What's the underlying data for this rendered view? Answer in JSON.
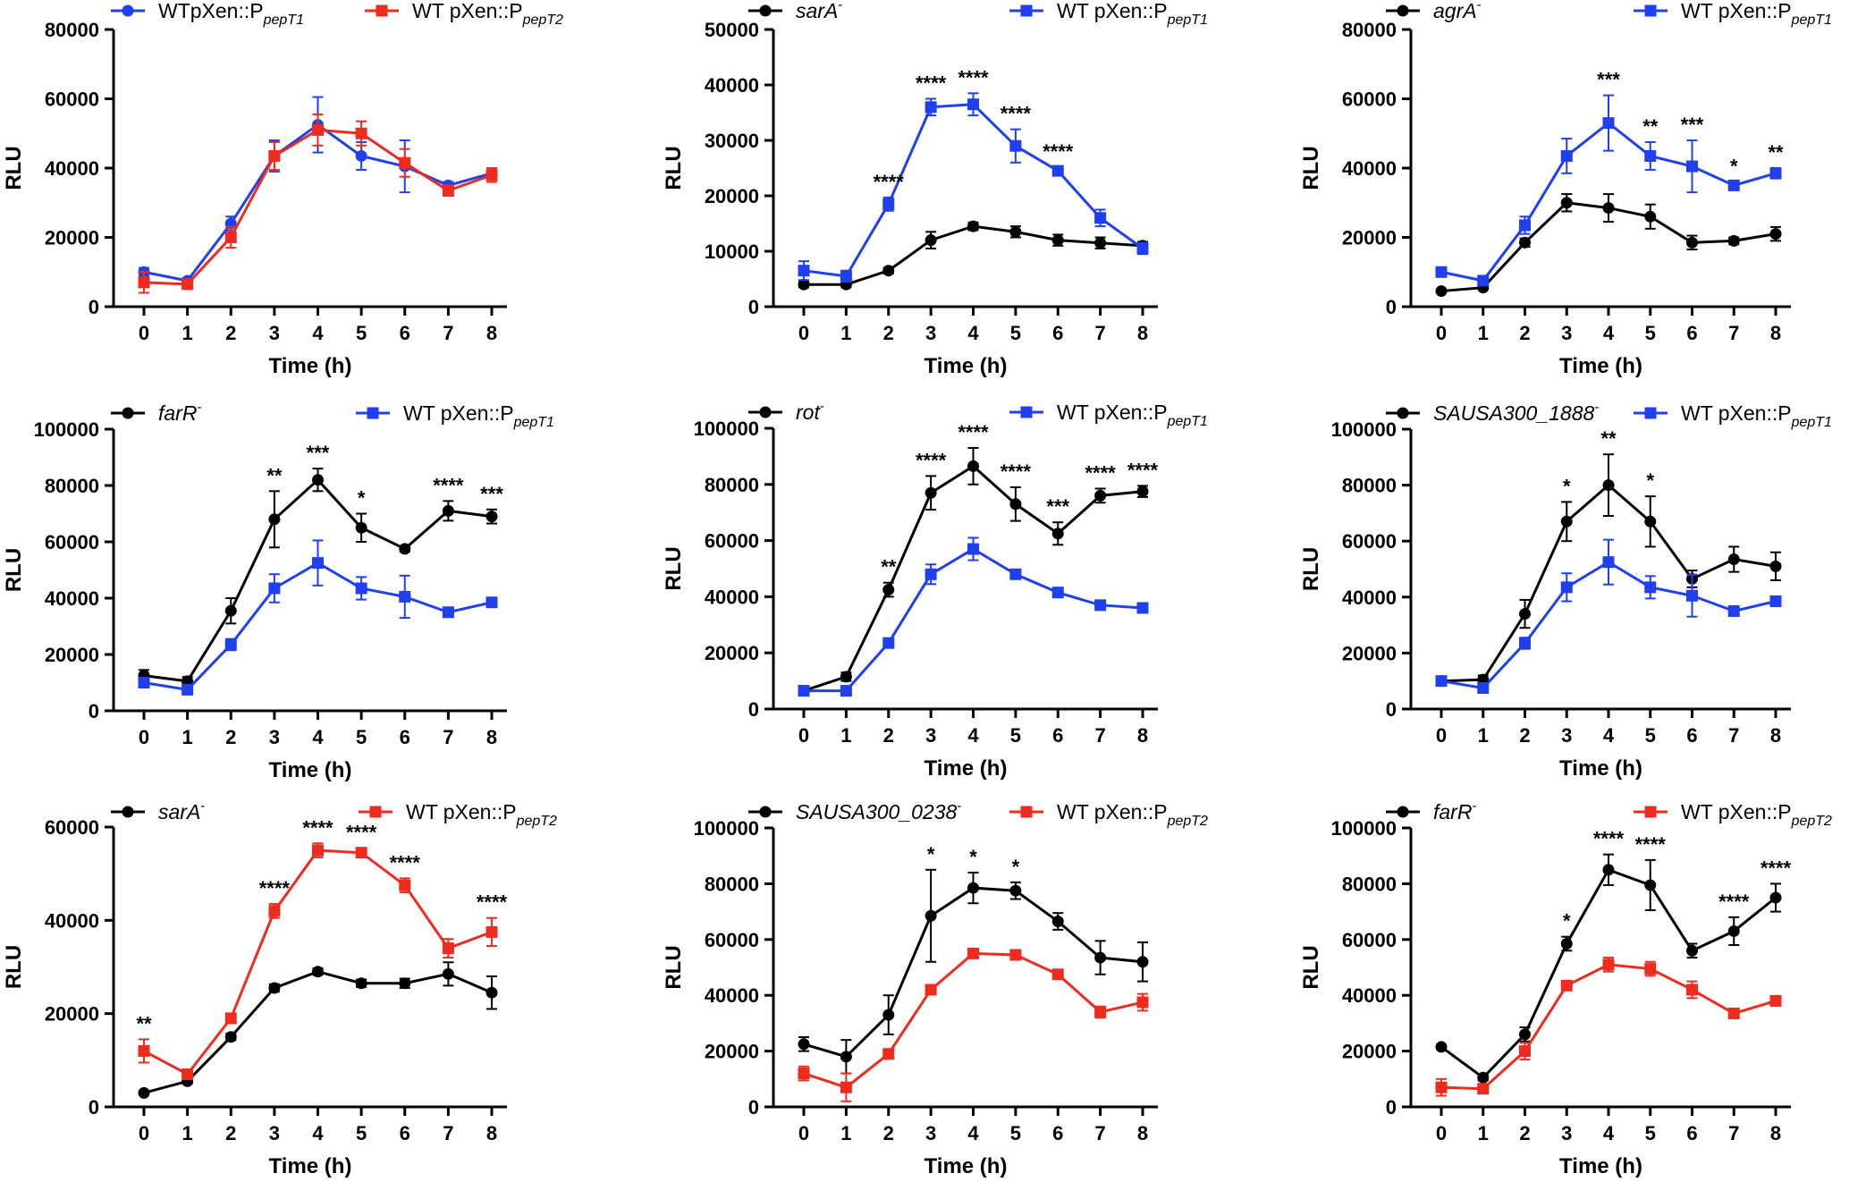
{
  "colors": {
    "black": "#000000",
    "blue": "#1f3ff0",
    "red": "#ee2b1e"
  },
  "chart_data": [
    {
      "type": "line",
      "title": "",
      "xlabel": "Time (h)",
      "ylabel": "RLU",
      "categories": [
        "0",
        "1",
        "2",
        "3",
        "4",
        "5",
        "6",
        "7",
        "8"
      ],
      "ylim": [
        0,
        80000
      ],
      "yticks": [
        "0",
        "20000",
        "40000",
        "60000",
        "80000"
      ],
      "series": [
        {
          "name": "WTpXen::P",
          "name_sub": "pepT1",
          "name_italic": false,
          "name_sup": "",
          "color": "#1f3ff0",
          "marker": "circle",
          "values": [
            10000,
            7500,
            24000,
            43500,
            52500,
            43500,
            40500,
            35000,
            38500
          ],
          "errors": [
            1200,
            800,
            2000,
            4500,
            8000,
            4000,
            7500,
            1000,
            1500
          ]
        },
        {
          "name": "WT pXen::P",
          "name_sub": "pepT2",
          "name_italic": false,
          "name_sup": "",
          "color": "#ee2b1e",
          "marker": "square",
          "values": [
            7000,
            6500,
            20000,
            43500,
            51000,
            50000,
            41500,
            33500,
            38000
          ],
          "errors": [
            3000,
            1000,
            3000,
            4000,
            4500,
            3500,
            4000,
            1500,
            2000
          ]
        }
      ],
      "annotations": []
    },
    {
      "type": "line",
      "title": "",
      "xlabel": "Time (h)",
      "ylabel": "RLU",
      "categories": [
        "0",
        "1",
        "2",
        "3",
        "4",
        "5",
        "6",
        "7",
        "8"
      ],
      "ylim": [
        0,
        50000
      ],
      "yticks": [
        "0",
        "10000",
        "20000",
        "30000",
        "40000",
        "50000"
      ],
      "series": [
        {
          "name": "sarA",
          "name_sub": "",
          "name_italic": true,
          "name_sup": "-",
          "color": "#000000",
          "marker": "circle",
          "values": [
            4000,
            4000,
            6500,
            12000,
            14500,
            13500,
            12000,
            11500,
            11000
          ],
          "errors": [
            500,
            500,
            500,
            1500,
            700,
            1000,
            1000,
            1000,
            700
          ]
        },
        {
          "name": "WT pXen::P",
          "name_sub": "pepT1",
          "name_italic": false,
          "name_sup": "",
          "color": "#1f3ff0",
          "marker": "square",
          "values": [
            6500,
            5500,
            18500,
            36000,
            36500,
            29000,
            24500,
            16000,
            10500
          ],
          "errors": [
            1700,
            1000,
            1200,
            1500,
            2000,
            3000,
            700,
            1500,
            1000
          ]
        }
      ],
      "annotations": [
        {
          "x": "2",
          "y": 18500,
          "err": 1200,
          "label": "****"
        },
        {
          "x": "3",
          "y": 36000,
          "err": 1500,
          "label": "****"
        },
        {
          "x": "4",
          "y": 36500,
          "err": 2000,
          "label": "****"
        },
        {
          "x": "5",
          "y": 29000,
          "err": 3000,
          "label": "****"
        },
        {
          "x": "6",
          "y": 24500,
          "err": 700,
          "label": "****"
        }
      ]
    },
    {
      "type": "line",
      "title": "",
      "xlabel": "Time (h)",
      "ylabel": "RLU",
      "categories": [
        "0",
        "1",
        "2",
        "3",
        "4",
        "5",
        "6",
        "7",
        "8"
      ],
      "ylim": [
        0,
        80000
      ],
      "yticks": [
        "0",
        "20000",
        "40000",
        "60000",
        "80000"
      ],
      "series": [
        {
          "name": "agrA",
          "name_sub": "",
          "name_italic": true,
          "name_sup": "-",
          "color": "#000000",
          "marker": "circle",
          "values": [
            4500,
            5500,
            18500,
            30000,
            28500,
            26000,
            18500,
            19000,
            21000
          ],
          "errors": [
            500,
            500,
            1200,
            2500,
            4000,
            3500,
            2000,
            1000,
            2000
          ]
        },
        {
          "name": "WT pXen::P",
          "name_sub": "pepT1",
          "name_italic": false,
          "name_sup": "",
          "color": "#1f3ff0",
          "marker": "square",
          "values": [
            10000,
            7500,
            23500,
            43500,
            53000,
            43500,
            40500,
            35000,
            38500
          ],
          "errors": [
            1200,
            800,
            2500,
            5000,
            8000,
            4000,
            7500,
            1000,
            1500
          ]
        }
      ],
      "annotations": [
        {
          "x": "4",
          "y": 53000,
          "err": 8000,
          "label": "***"
        },
        {
          "x": "5",
          "y": 43500,
          "err": 4000,
          "label": "**"
        },
        {
          "x": "6",
          "y": 40500,
          "err": 7500,
          "label": "***"
        },
        {
          "x": "7",
          "y": 35000,
          "err": 1000,
          "label": "*"
        },
        {
          "x": "8",
          "y": 38500,
          "err": 1500,
          "label": "**"
        }
      ]
    },
    {
      "type": "line",
      "title": "",
      "xlabel": "Time (h)",
      "ylabel": "RLU",
      "categories": [
        "0",
        "1",
        "2",
        "3",
        "4",
        "5",
        "6",
        "7",
        "8"
      ],
      "ylim": [
        0,
        100000
      ],
      "yticks": [
        "0",
        "20000",
        "40000",
        "60000",
        "80000",
        "100000"
      ],
      "series": [
        {
          "name": "farR",
          "name_sub": "",
          "name_italic": true,
          "name_sup": "-",
          "color": "#000000",
          "marker": "circle",
          "values": [
            12500,
            10500,
            35500,
            68000,
            82000,
            65000,
            57500,
            71000,
            69000
          ],
          "errors": [
            2000,
            1500,
            4500,
            10000,
            4000,
            5000,
            1000,
            3500,
            2500
          ]
        },
        {
          "name": "WT pXen::P",
          "name_sub": "pepT1",
          "name_italic": false,
          "name_sup": "",
          "color": "#1f3ff0",
          "marker": "square",
          "values": [
            10000,
            7500,
            23500,
            43500,
            52500,
            43500,
            40500,
            35000,
            38500
          ],
          "errors": [
            1200,
            800,
            2000,
            5000,
            8000,
            4000,
            7500,
            1000,
            1500
          ]
        }
      ],
      "annotations": [
        {
          "x": "3",
          "y": 68000,
          "err": 10000,
          "label": "**"
        },
        {
          "x": "4",
          "y": 82000,
          "err": 4000,
          "label": "***"
        },
        {
          "x": "5",
          "y": 65000,
          "err": 5000,
          "label": "*"
        },
        {
          "x": "7",
          "y": 71000,
          "err": 3500,
          "label": "****"
        },
        {
          "x": "8",
          "y": 69000,
          "err": 2500,
          "label": "***"
        }
      ]
    },
    {
      "type": "line",
      "title": "",
      "xlabel": "Time (h)",
      "ylabel": "RLU",
      "categories": [
        "0",
        "1",
        "2",
        "3",
        "4",
        "5",
        "6",
        "7",
        "8"
      ],
      "ylim": [
        0,
        100000
      ],
      "yticks": [
        "0",
        "20000",
        "40000",
        "60000",
        "80000",
        "100000"
      ],
      "series": [
        {
          "name": "rot",
          "name_sub": "",
          "name_italic": true,
          "name_sup": "-",
          "color": "#000000",
          "marker": "circle",
          "values": [
            6500,
            11500,
            42500,
            77000,
            86500,
            73000,
            62500,
            76000,
            77500
          ],
          "errors": [
            700,
            1500,
            2500,
            6000,
            6500,
            6000,
            4000,
            2500,
            2000
          ]
        },
        {
          "name": "WT pXen::P",
          "name_sub": "pepT1",
          "name_italic": false,
          "name_sup": "",
          "color": "#1f3ff0",
          "marker": "square",
          "values": [
            6500,
            6500,
            23500,
            48000,
            57000,
            48000,
            41500,
            37000,
            36000
          ],
          "errors": [
            500,
            500,
            1000,
            3500,
            4000,
            1500,
            1500,
            1000,
            1000
          ]
        }
      ],
      "annotations": [
        {
          "x": "2",
          "y": 42500,
          "err": 2500,
          "label": "**"
        },
        {
          "x": "3",
          "y": 77000,
          "err": 6000,
          "label": "****"
        },
        {
          "x": "4",
          "y": 86500,
          "err": 6500,
          "label": "****"
        },
        {
          "x": "5",
          "y": 73000,
          "err": 6000,
          "label": "****"
        },
        {
          "x": "6",
          "y": 62500,
          "err": 4000,
          "label": "***"
        },
        {
          "x": "7",
          "y": 76000,
          "err": 2500,
          "label": "****"
        },
        {
          "x": "8",
          "y": 77500,
          "err": 2000,
          "label": "****"
        }
      ]
    },
    {
      "type": "line",
      "title": "",
      "xlabel": "Time (h)",
      "ylabel": "RLU",
      "categories": [
        "0",
        "1",
        "2",
        "3",
        "4",
        "5",
        "6",
        "7",
        "8"
      ],
      "ylim": [
        0,
        100000
      ],
      "yticks": [
        "0",
        "20000",
        "40000",
        "60000",
        "80000",
        "100000"
      ],
      "series": [
        {
          "name": "SAUSA300_1888",
          "name_sub": "",
          "name_italic": true,
          "name_sup": "-",
          "color": "#000000",
          "marker": "circle",
          "values": [
            10000,
            10500,
            34000,
            67000,
            80000,
            67000,
            46500,
            53500,
            51000
          ],
          "errors": [
            1500,
            1500,
            5000,
            7000,
            11000,
            9000,
            3000,
            4500,
            5000
          ]
        },
        {
          "name": "WT pXen::P",
          "name_sub": "pepT1",
          "name_italic": false,
          "name_sup": "",
          "color": "#1f3ff0",
          "marker": "square",
          "values": [
            10000,
            7500,
            23500,
            43500,
            52500,
            43500,
            40500,
            35000,
            38500
          ],
          "errors": [
            1200,
            800,
            2000,
            5000,
            8000,
            4000,
            7500,
            1000,
            1500
          ]
        }
      ],
      "annotations": [
        {
          "x": "3",
          "y": 67000,
          "err": 7000,
          "label": "*"
        },
        {
          "x": "4",
          "y": 80000,
          "err": 11000,
          "label": "**"
        },
        {
          "x": "5",
          "y": 67000,
          "err": 9000,
          "label": "*"
        }
      ]
    },
    {
      "type": "line",
      "title": "",
      "xlabel": "Time (h)",
      "ylabel": "RLU",
      "categories": [
        "0",
        "1",
        "2",
        "3",
        "4",
        "5",
        "6",
        "7",
        "8"
      ],
      "ylim": [
        0,
        60000
      ],
      "yticks": [
        "0",
        "20000",
        "40000",
        "60000"
      ],
      "series": [
        {
          "name": "sarA",
          "name_sub": "",
          "name_italic": true,
          "name_sup": "-",
          "color": "#000000",
          "marker": "circle",
          "values": [
            3000,
            5500,
            15000,
            25500,
            29000,
            26500,
            26500,
            28500,
            24500
          ],
          "errors": [
            300,
            500,
            700,
            800,
            700,
            800,
            1000,
            2500,
            3500
          ]
        },
        {
          "name": "WT pXen::P",
          "name_sub": "pepT2",
          "name_italic": false,
          "name_sup": "",
          "color": "#ee2b1e",
          "marker": "square",
          "values": [
            12000,
            7000,
            19000,
            42000,
            55000,
            54500,
            47500,
            34000,
            37500
          ],
          "errors": [
            2500,
            1000,
            1000,
            1500,
            1500,
            1000,
            1500,
            2000,
            3000
          ]
        }
      ],
      "annotations": [
        {
          "x": "0",
          "y": 12000,
          "err": 2500,
          "label": "**"
        },
        {
          "x": "3",
          "y": 42000,
          "err": 1500,
          "label": "****"
        },
        {
          "x": "4",
          "y": 55000,
          "err": 1500,
          "label": "****"
        },
        {
          "x": "5",
          "y": 54500,
          "err": 1000,
          "label": "****"
        },
        {
          "x": "6",
          "y": 47500,
          "err": 1500,
          "label": "****"
        },
        {
          "x": "8",
          "y": 37500,
          "err": 3000,
          "label": "****"
        }
      ]
    },
    {
      "type": "line",
      "title": "",
      "xlabel": "Time (h)",
      "ylabel": "RLU",
      "categories": [
        "0",
        "1",
        "2",
        "3",
        "4",
        "5",
        "6",
        "7",
        "8"
      ],
      "ylim": [
        0,
        100000
      ],
      "yticks": [
        "0",
        "20000",
        "40000",
        "60000",
        "80000",
        "100000"
      ],
      "series": [
        {
          "name": "SAUSA300_0238",
          "name_sub": "",
          "name_italic": true,
          "name_sup": "-",
          "color": "#000000",
          "marker": "circle",
          "values": [
            22500,
            18000,
            33000,
            68500,
            78500,
            77500,
            66500,
            53500,
            52000
          ],
          "errors": [
            2500,
            6000,
            7000,
            16500,
            5500,
            3000,
            3000,
            6000,
            7000
          ]
        },
        {
          "name": "WT pXen::P",
          "name_sub": "pepT2",
          "name_italic": false,
          "name_sup": "",
          "color": "#ee2b1e",
          "marker": "square",
          "values": [
            12000,
            7000,
            19000,
            42000,
            55000,
            54500,
            47500,
            34000,
            37500
          ],
          "errors": [
            2500,
            5000,
            1000,
            1500,
            1500,
            1000,
            1500,
            2000,
            3000
          ]
        }
      ],
      "annotations": [
        {
          "x": "3",
          "y": 68500,
          "err": 16500,
          "label": "*"
        },
        {
          "x": "4",
          "y": 78500,
          "err": 5500,
          "label": "*"
        },
        {
          "x": "5",
          "y": 77500,
          "err": 3000,
          "label": "*"
        }
      ]
    },
    {
      "type": "line",
      "title": "",
      "xlabel": "Time (h)",
      "ylabel": "RLU",
      "categories": [
        "0",
        "1",
        "2",
        "3",
        "4",
        "5",
        "6",
        "7",
        "8"
      ],
      "ylim": [
        0,
        100000
      ],
      "yticks": [
        "0",
        "20000",
        "40000",
        "60000",
        "80000",
        "100000"
      ],
      "series": [
        {
          "name": "farR",
          "name_sub": "",
          "name_italic": true,
          "name_sup": "-",
          "color": "#000000",
          "marker": "circle",
          "values": [
            21500,
            10500,
            26000,
            58500,
            85000,
            79500,
            56000,
            63000,
            75000
          ],
          "errors": [
            700,
            1000,
            2500,
            2500,
            5500,
            9000,
            2500,
            5000,
            5000
          ]
        },
        {
          "name": "WT pXen::P",
          "name_sub": "pepT2",
          "name_italic": false,
          "name_sup": "",
          "color": "#ee2b1e",
          "marker": "square",
          "values": [
            7000,
            6500,
            20000,
            43500,
            51000,
            49500,
            42000,
            33500,
            38000
          ],
          "errors": [
            3000,
            1000,
            3000,
            1000,
            2500,
            2500,
            3000,
            1000,
            1000
          ]
        }
      ],
      "annotations": [
        {
          "x": "3",
          "y": 58500,
          "err": 2500,
          "label": "*"
        },
        {
          "x": "4",
          "y": 85000,
          "err": 5500,
          "label": "****"
        },
        {
          "x": "5",
          "y": 79500,
          "err": 9000,
          "label": "****"
        },
        {
          "x": "7",
          "y": 63000,
          "err": 5000,
          "label": "****"
        },
        {
          "x": "8",
          "y": 75000,
          "err": 5000,
          "label": "****"
        }
      ]
    }
  ]
}
